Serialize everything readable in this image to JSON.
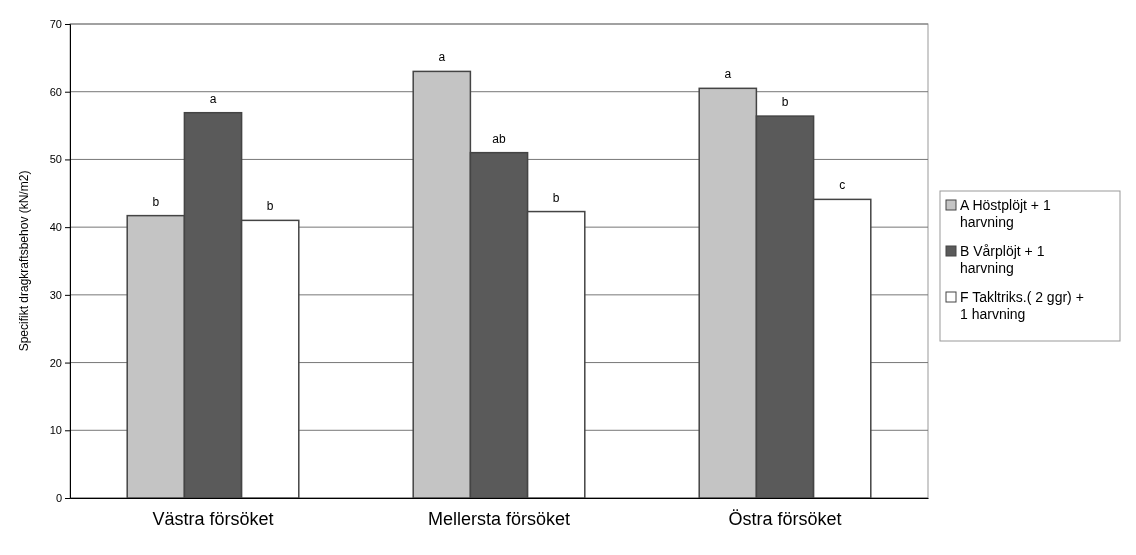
{
  "chart_data": {
    "type": "bar",
    "ylabel": "Specifikt dragkraftsbehov (kN/m2)",
    "categories": [
      "Västra försöket",
      "Mellersta försöket",
      "Östra försöket"
    ],
    "series": [
      {
        "name": "A Höstplöjt + 1 harvning",
        "color": "#c4c4c4",
        "values": [
          41.7,
          63,
          60.5
        ],
        "value_labels": [
          "b",
          "a",
          "a"
        ]
      },
      {
        "name": "B Vårplöjt + 1 harvning",
        "color": "#5a5a5a",
        "values": [
          56.9,
          51,
          56.4
        ],
        "value_labels": [
          "a",
          "ab",
          "b"
        ]
      },
      {
        "name": "F Takltriks.( 2 ggr) + 1 harvning",
        "color": "#ffffff",
        "values": [
          41,
          42.3,
          44.1
        ],
        "value_labels": [
          "b",
          "b",
          "c"
        ]
      }
    ],
    "ylim": [
      0,
      70
    ],
    "yticks": [
      0,
      10,
      20,
      30,
      40,
      50,
      60,
      70
    ],
    "grid": "y",
    "legend": "right"
  }
}
